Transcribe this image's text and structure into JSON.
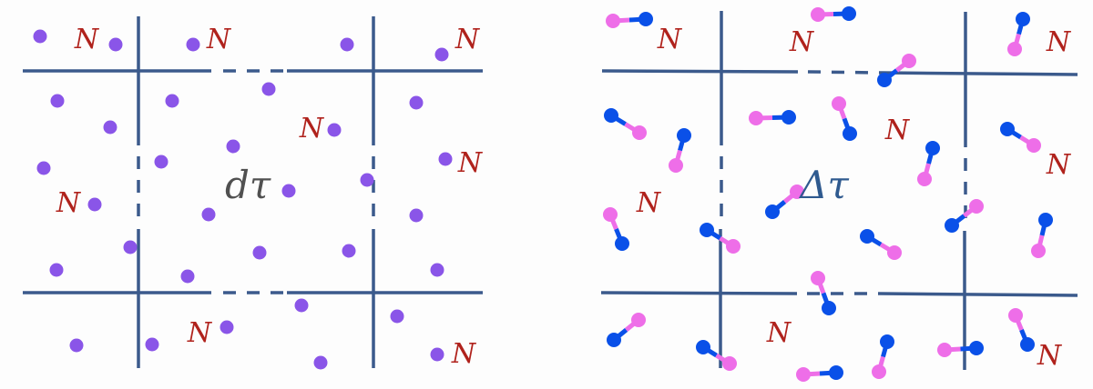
{
  "left_panel": {
    "center_label": "dτ",
    "cell_label": "N",
    "particle_color": "#8a55e8"
  },
  "right_panel": {
    "center_label": "Δτ",
    "cell_label": "N",
    "atom_colors": {
      "pink": "#ee6ee8",
      "blue": "#0a50e8"
    }
  },
  "colors": {
    "grid": "#3b5a8c",
    "label": "#b0221c"
  }
}
